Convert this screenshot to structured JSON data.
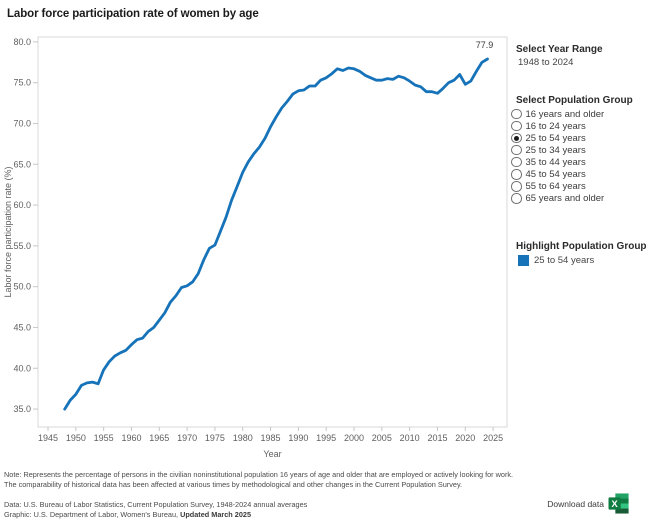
{
  "page_title": "Labor force participation rate of women by age",
  "panel": {
    "year_range": {
      "label": "Select Year Range",
      "value": "1948 to 2024"
    },
    "population_group": {
      "label": "Select Population Group",
      "options": [
        {
          "label": "16 years and older",
          "selected": false
        },
        {
          "label": "16 to 24 years",
          "selected": false
        },
        {
          "label": "25 to 54 years",
          "selected": true
        },
        {
          "label": "25 to 34 years",
          "selected": false
        },
        {
          "label": "35 to 44 years",
          "selected": false
        },
        {
          "label": "45 to 54 years",
          "selected": false
        },
        {
          "label": "55 to 64 years",
          "selected": false
        },
        {
          "label": "65 years and older",
          "selected": false
        }
      ]
    },
    "highlight": {
      "label": "Highlight Population Group",
      "value": "25 to 54 years",
      "swatch_color": "#1673B9"
    }
  },
  "chart_data": {
    "type": "line",
    "title": "Labor force participation rate of women by age",
    "xlabel": "Year",
    "ylabel": "Labor force participation rate (%)",
    "grid": false,
    "legend": "none",
    "xlim": [
      1943.2,
      2027.5
    ],
    "ylim": [
      32.8,
      80.6
    ],
    "xticks": [
      1945,
      1950,
      1955,
      1960,
      1965,
      1970,
      1975,
      1980,
      1985,
      1990,
      1995,
      2000,
      2005,
      2010,
      2015,
      2020,
      2025
    ],
    "yticks": [
      35,
      40,
      45,
      50,
      55,
      60,
      65,
      70,
      75,
      80
    ],
    "end_label": "77.9",
    "line_color": "#1673B9",
    "series": [
      {
        "name": "25 to 54 years",
        "x_start": 1948,
        "x_end": 2024,
        "values": [
          35.0,
          36.1,
          36.8,
          37.9,
          38.2,
          38.3,
          38.1,
          39.8,
          40.8,
          41.5,
          41.9,
          42.2,
          42.9,
          43.5,
          43.7,
          44.5,
          45.0,
          45.9,
          46.8,
          48.1,
          48.9,
          49.9,
          50.1,
          50.6,
          51.6,
          53.3,
          54.7,
          55.1,
          56.8,
          58.5,
          60.6,
          62.3,
          64.0,
          65.3,
          66.3,
          67.1,
          68.2,
          69.6,
          70.8,
          71.9,
          72.7,
          73.6,
          74.0,
          74.1,
          74.6,
          74.6,
          75.3,
          75.6,
          76.1,
          76.7,
          76.5,
          76.8,
          76.7,
          76.4,
          75.9,
          75.6,
          75.3,
          75.3,
          75.5,
          75.4,
          75.8,
          75.6,
          75.2,
          74.7,
          74.5,
          73.9,
          73.9,
          73.7,
          74.3,
          75.0,
          75.3,
          76.0,
          74.8,
          75.2,
          76.4,
          77.5,
          77.9
        ]
      }
    ]
  },
  "footer": {
    "note": "Note: Represents the percentage of persons in the civilian noninstitutional population 16 years of age and older that are employed or actively looking for work. The comparability of historical data has been affected at various times by methodological and other changes in the Current Population Survey.",
    "data_source": "Data: U.S. Bureau of Labor Statistics,  Current Population Survey, 1948-2024 annual averages",
    "graphic_credit": "Graphic: U.S. Department of Labor, Women's Bureau, ",
    "graphic_updated": "Updated March 2025",
    "download_label": "Download data",
    "download_icon": "excel-icon"
  },
  "colors": {
    "accent_blue": "#1673B9",
    "axis_text": "#5f5f5f",
    "plot_border": "#d9d9d9",
    "tick": "#c7c7c7",
    "excel_dark_green": "#185C37",
    "excel_mid_green": "#107C41",
    "excel_light_green": "#21A366",
    "excel_lighter_green": "#33C481"
  }
}
